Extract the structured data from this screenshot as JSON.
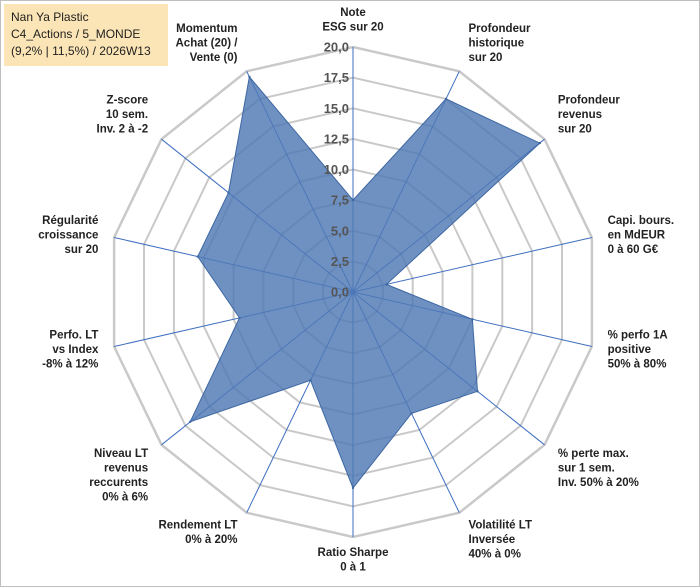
{
  "info": {
    "line1": "Nan Ya Plastic",
    "line2": "C4_Actions / 5_MONDE",
    "line3": "(9,2% | 11,5%) / 2026W13"
  },
  "chart_data": {
    "type": "radar",
    "title": "",
    "r_range": [
      0,
      20
    ],
    "ticks": [
      "0,0",
      "2,5",
      "5,0",
      "7,5",
      "10,0",
      "12,5",
      "15,0",
      "17,5",
      "20,0"
    ],
    "categories": [
      [
        "Note",
        "ESG sur 20"
      ],
      [
        "Profondeur",
        "historique",
        "sur 20"
      ],
      [
        "Profondeur",
        "revenus",
        "sur 20"
      ],
      [
        "Capi. bours.",
        "en MdEUR",
        "0 à 60 G€"
      ],
      [
        "% perfo 1A",
        "positive",
        "50% à 80%"
      ],
      [
        "% perte max.",
        "sur 1 sem.",
        "Inv. 50% à 20%"
      ],
      [
        "Volatilité LT",
        "Inversée",
        "40% à 0%"
      ],
      [
        "Ratio Sharpe",
        "0 à 1"
      ],
      [
        "Rendement LT",
        "0% à 20%"
      ],
      [
        "Niveau LT",
        "revenus",
        "reccurents",
        "0% à 6%"
      ],
      [
        "Perfo. LT",
        "vs Index",
        "-8% à 12%"
      ],
      [
        "Régularité",
        "croissance",
        "sur 20"
      ],
      [
        "Z-score",
        "10 sem.",
        "Inv. 2 à -2"
      ],
      [
        "Momentum",
        "Achat (20) /",
        "Vente (0)"
      ]
    ],
    "values": [
      7.5,
      17.5,
      19.5,
      2.8,
      10.0,
      13.0,
      11.0,
      16.0,
      8.0,
      17.0,
      9.5,
      13.0,
      13.0,
      19.5
    ],
    "series_color": "#4f79b4",
    "grid": true,
    "legend": "none"
  }
}
